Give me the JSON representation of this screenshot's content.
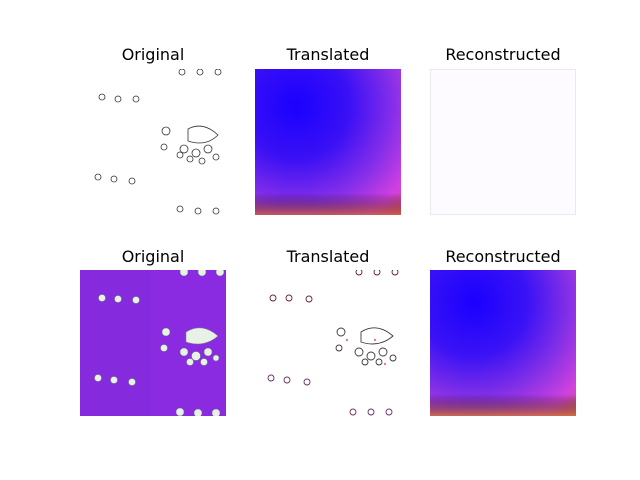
{
  "figure": {
    "rows": [
      {
        "panels": [
          {
            "title": "Original",
            "kind": "sketch-white"
          },
          {
            "title": "Translated",
            "kind": "gradient-blue-magenta"
          },
          {
            "title": "Reconstructed",
            "kind": "blank-white"
          }
        ]
      },
      {
        "panels": [
          {
            "title": "Original",
            "kind": "purple-pattern"
          },
          {
            "title": "Translated",
            "kind": "sketch-color"
          },
          {
            "title": "Reconstructed",
            "kind": "gradient-blue-magenta"
          }
        ]
      }
    ]
  },
  "colors": {
    "background": "#ffffff",
    "purple_fabric": "#8a2be2",
    "gradient_blue": "#1a00ff",
    "gradient_magenta": "#e040e0",
    "gradient_orange": "#c05050"
  }
}
